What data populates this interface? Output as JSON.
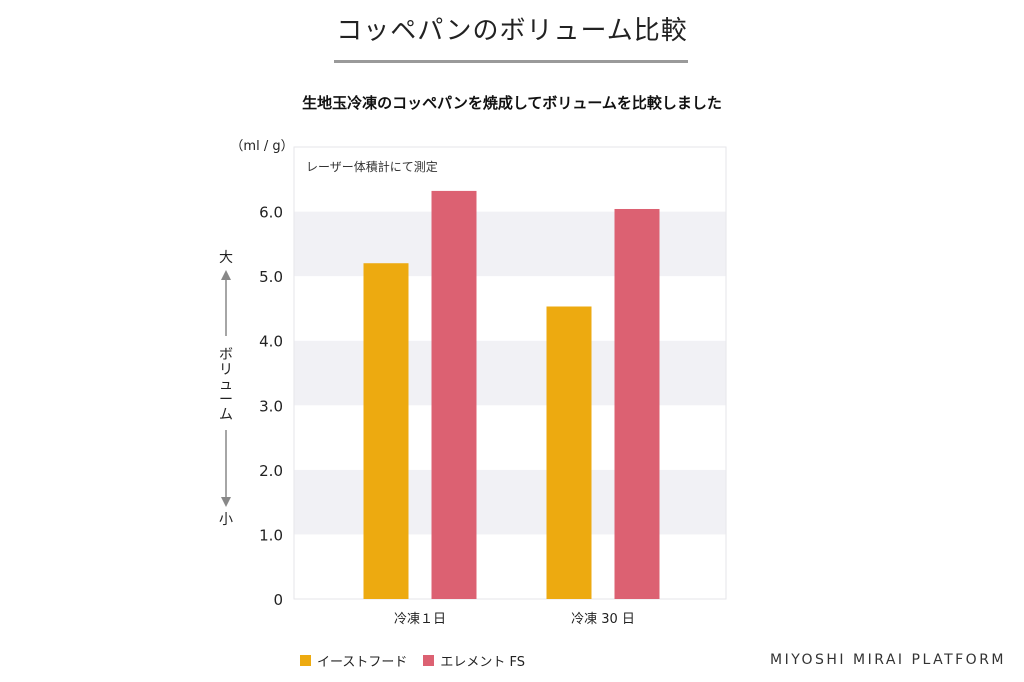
{
  "header": {
    "title": "コッペパンのボリューム比較"
  },
  "chart_data": {
    "type": "bar",
    "title": "生地玉冷凍のコッペパンを焼成してボリュームを比較しました",
    "unit_label": "（ml / g）",
    "note": "レーザー体積計にて測定",
    "ylabel_top": "大",
    "ylabel_middle": "ボリューム",
    "ylabel_bottom": "小",
    "ylim": [
      0,
      7.0
    ],
    "yticks": [
      "0",
      "1.0",
      "2.0",
      "3.0",
      "4.0",
      "5.0",
      "6.0"
    ],
    "grid": "alternating horizontal bands",
    "categories": [
      "冷凍１日",
      "冷凍 30 日"
    ],
    "series": [
      {
        "name": "イーストフード",
        "values": [
          5.2,
          4.53
        ],
        "color": "#EDAA10"
      },
      {
        "name": "エレメント FS",
        "values": [
          6.32,
          6.04
        ],
        "color": "#DC6172"
      }
    ],
    "legend_position": "bottom-left"
  },
  "footer": {
    "brand": "MIYOSHI MIRAI PLATFORM"
  }
}
